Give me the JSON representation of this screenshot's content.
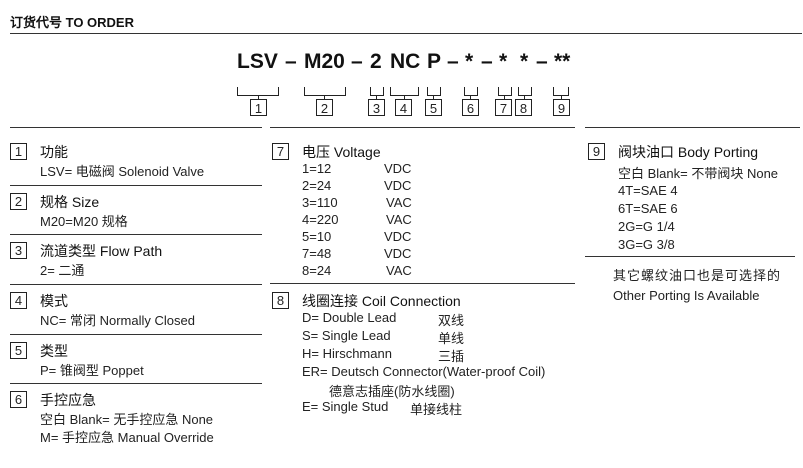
{
  "title": "订货代号 TO ORDER",
  "code": [
    "LSV",
    "–",
    "M20",
    "–",
    "2",
    "NC",
    "P",
    "–",
    "*",
    "–",
    "*",
    "*",
    "–",
    "**"
  ],
  "boxes": [
    "1",
    "2",
    "3",
    "4",
    "5",
    "6",
    "7",
    "8",
    "9"
  ],
  "s1": {
    "num": "1",
    "head": "功能",
    "lines": [
      "LSV= 电磁阀 Solenoid Valve"
    ]
  },
  "s2": {
    "num": "2",
    "head": "规格 Size",
    "lines": [
      "M20=M20 规格"
    ]
  },
  "s3": {
    "num": "3",
    "head": "流道类型 Flow Path",
    "lines": [
      "2= 二通"
    ]
  },
  "s4": {
    "num": "4",
    "head": "模式",
    "lines": [
      "NC= 常闭 Normally Closed"
    ]
  },
  "s5": {
    "num": "5",
    "head": "类型",
    "lines": [
      "P= 锥阀型 Poppet"
    ]
  },
  "s6": {
    "num": "6",
    "head": "手控应急",
    "lines": [
      "空白 Blank= 无手控应急 None",
      "M= 手控应急 Manual Override"
    ]
  },
  "s7": {
    "num": "7",
    "head": "电压 Voltage",
    "rows": [
      [
        "1=12",
        "VDC"
      ],
      [
        "2=24",
        "VDC"
      ],
      [
        "3=110",
        "VAC"
      ],
      [
        "4=220",
        "VAC"
      ],
      [
        "5=10",
        "VDC"
      ],
      [
        "7=48",
        "VDC"
      ],
      [
        "8=24",
        "VAC"
      ]
    ]
  },
  "s8": {
    "num": "8",
    "head": "线圈连接 Coil Connection",
    "rows": [
      [
        "D= Double Lead",
        "双线"
      ],
      [
        "S= Single Lead",
        "单线"
      ],
      [
        "H= Hirschmann",
        "三插"
      ],
      [
        "ER= Deutsch Connector(Water-proof Coil)",
        ""
      ],
      [
        "德意志插座(防水线圈)",
        ""
      ],
      [
        "E= Single Stud",
        "单接线柱"
      ]
    ]
  },
  "s9": {
    "num": "9",
    "head": "阀块油口 Body Porting",
    "lines": [
      "空白 Blank= 不带阀块 None",
      "4T=SAE 4",
      "6T=SAE 6",
      "2G=G 1/4",
      "3G=G 3/8"
    ],
    "note_cn": "其它螺纹油口也是可选择的",
    "note_en": "Other Porting Is Available"
  }
}
